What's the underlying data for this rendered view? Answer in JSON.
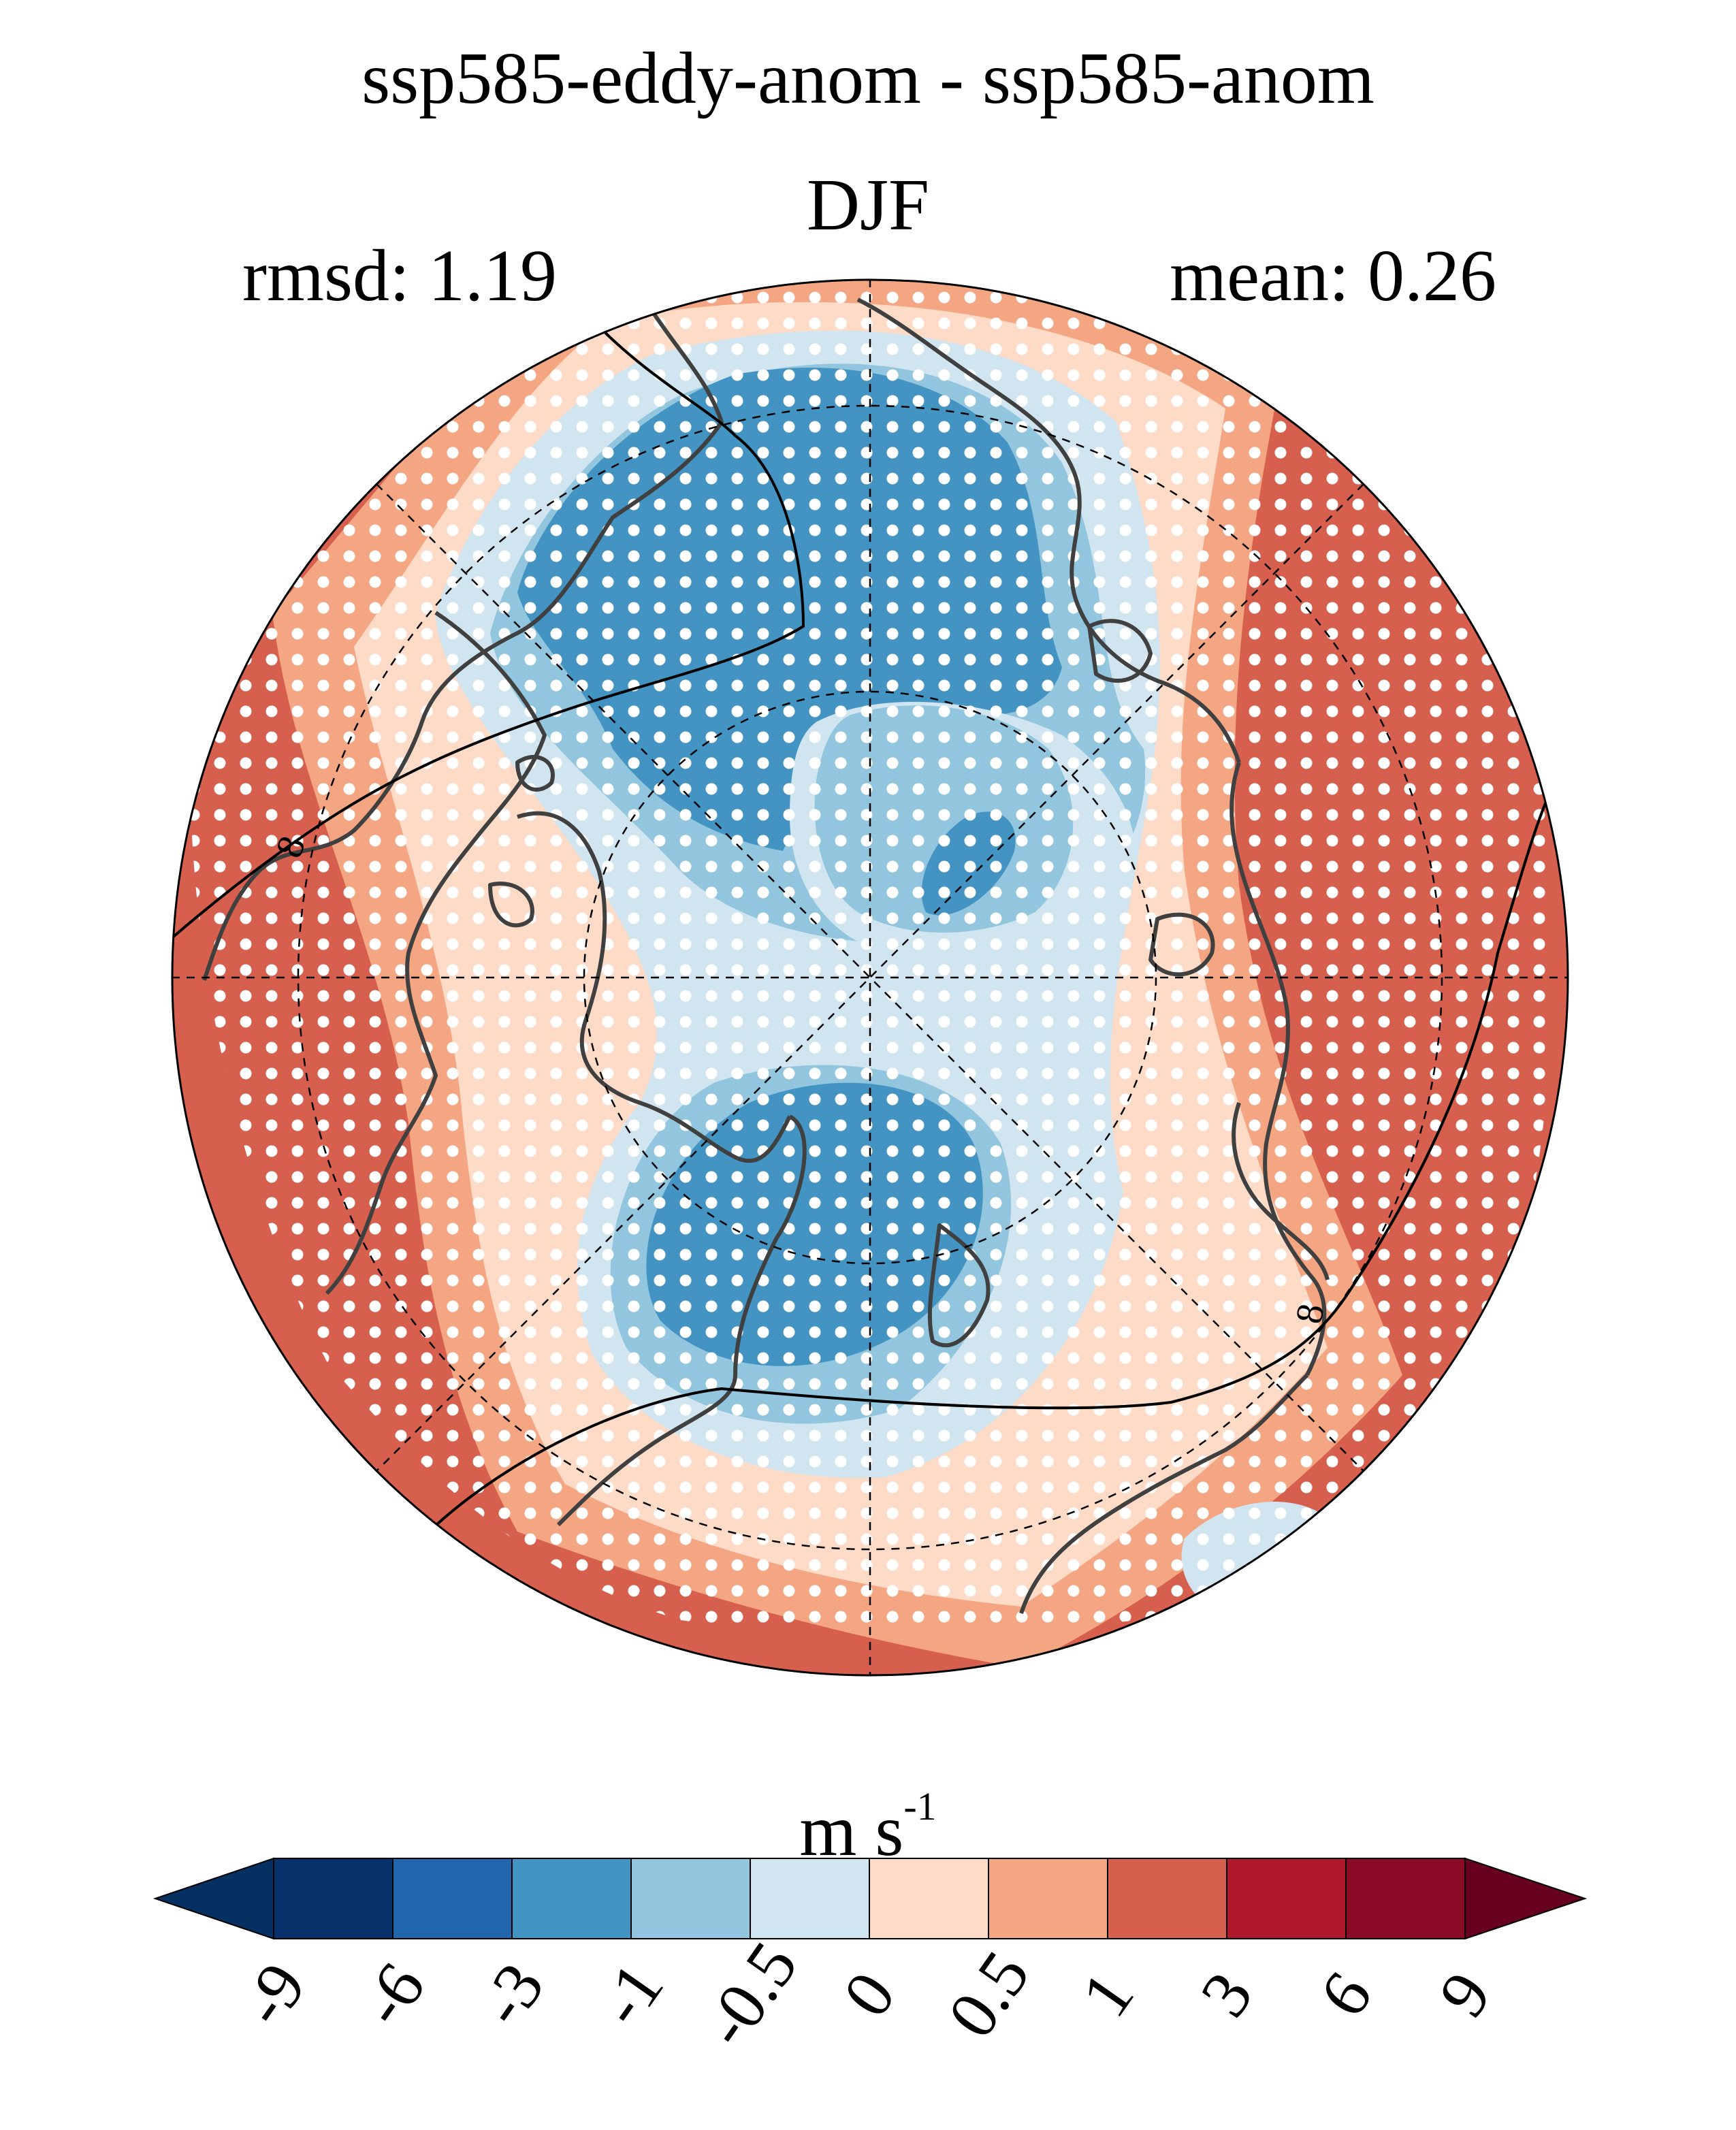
{
  "header": {
    "title": "ssp585-eddy-anom - ssp585-anom",
    "season": "DJF",
    "rmsd": "rmsd: 1.19",
    "mean": "mean: 0.26"
  },
  "map": {
    "projection": "north polar stereographic",
    "contour_labels": [
      "8",
      "8"
    ],
    "stippling": "white dots mark significant areas"
  },
  "colorbar": {
    "units_main": "m s",
    "units_exp": "-1",
    "levels": [
      "-9",
      "-6",
      "-3",
      "-1",
      "-0.5",
      "0",
      "0.5",
      "1",
      "3",
      "6",
      "9"
    ],
    "colors": [
      "#053061",
      "#08306b",
      "#2166ac",
      "#4393c3",
      "#92c5de",
      "#d1e5f0",
      "#fddbc7",
      "#f4a582",
      "#d6604d",
      "#b2182b",
      "#8b0a26",
      "#67001f"
    ]
  },
  "colors": {
    "dark_red": "#d6604d",
    "mid_red": "#f4a582",
    "light_red": "#fddbc7",
    "light_blue": "#d1e5f0",
    "mid_blue": "#92c5de",
    "blue": "#4393c3",
    "coast": "#404040"
  }
}
